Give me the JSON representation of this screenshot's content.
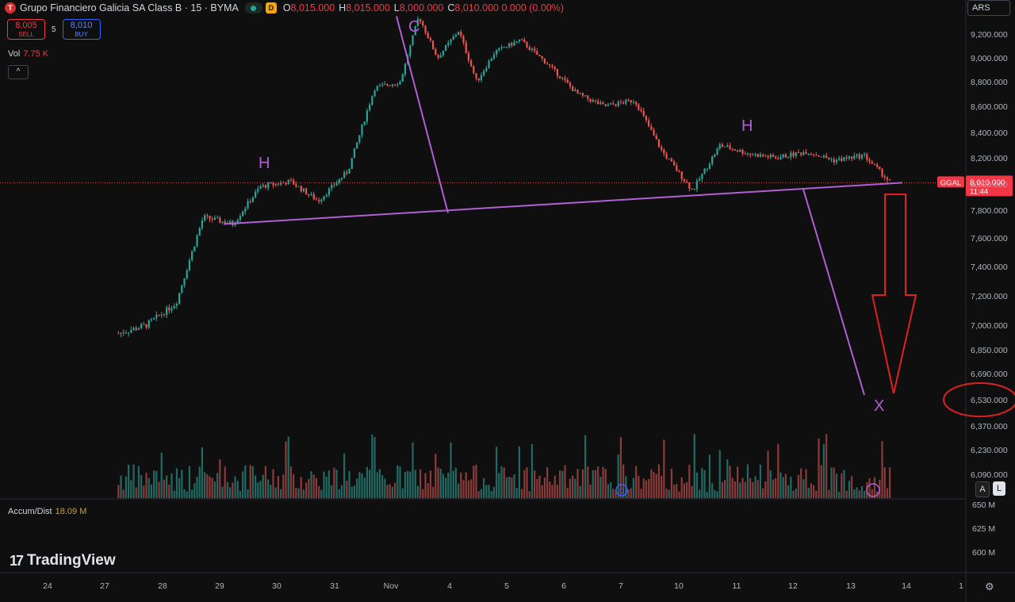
{
  "header": {
    "symbol_icon": "T",
    "title": "Grupo Financiero Galicia SA Class B · 15 · BYMA",
    "d_badge": "D",
    "o_key": "O",
    "o_val": "8,015.000",
    "h_key": "H",
    "h_val": "8,015.000",
    "l_key": "L",
    "l_val": "8,000.000",
    "c_key": "C",
    "c_val": "8,010.000 0.000 (0.00%)"
  },
  "trade": {
    "sell_price": "8,005",
    "sell_label": "SELL",
    "spread": "5",
    "buy_price": "8,010",
    "buy_label": "BUY"
  },
  "volume": {
    "label": "Vol",
    "value": "7.75 K"
  },
  "collapse_icon": "^",
  "currency": "ARS",
  "indicator": {
    "label": "Accum/Dist",
    "value": "18.09 M",
    "axis": [
      "650 M",
      "625 M",
      "600 M"
    ]
  },
  "branding": {
    "logo_mark": "17",
    "name": "TradingView"
  },
  "buttons": {
    "a": "A",
    "l": "L"
  },
  "gear_icon": "⚙",
  "colors": {
    "up": "#26a69a",
    "down": "#ef5350",
    "pattern": "#b05fd4",
    "arrow": "#e02020",
    "price_tag": "#f23645"
  },
  "chart_data": {
    "type": "candlestick",
    "symbol": "GGAL",
    "y_ticks": [
      9200,
      9000,
      8800,
      8600,
      8400,
      8200,
      8000,
      7800,
      7600,
      7400,
      7200,
      7000,
      6850,
      6690,
      6530,
      6370,
      6230,
      6090
    ],
    "y_tick_labels": [
      "9,200.000",
      "9,000.000",
      "8,800.000",
      "8,600.000",
      "8,400.000",
      "8,200.000",
      "8,000.000",
      "7,800.000",
      "7,600.000",
      "7,400.000",
      "7,200.000",
      "7,000.000",
      "6,850.000",
      "6,690.000",
      "6,530.000",
      "6,370.000",
      "6,230.000",
      "6,090.000"
    ],
    "x_labels": [
      "24",
      "27",
      "28",
      "29",
      "30",
      "31",
      "Nov",
      "4",
      "5",
      "6",
      "7",
      "10",
      "11",
      "12",
      "13",
      "14",
      "1"
    ],
    "last_price": "8,010.000",
    "last_price_time": "11:44",
    "pattern_labels": {
      "left_shoulder": "H",
      "head": "C",
      "right_shoulder": "H",
      "target": "X"
    },
    "neckline": [
      [
        7700,
        0
      ],
      [
        8000,
        1
      ]
    ],
    "target_price": "6,530.000",
    "price_path": [
      [
        "27",
        6950
      ],
      [
        "27",
        7000
      ],
      [
        "28",
        7150
      ],
      [
        "28",
        7750
      ],
      [
        "29",
        7700
      ],
      [
        "29",
        7980
      ],
      [
        "30",
        8020
      ],
      [
        "30",
        7870
      ],
      [
        "31",
        8100
      ],
      [
        "31",
        8750
      ],
      [
        "Nov",
        8800
      ],
      [
        "Nov",
        9350
      ],
      [
        "Nov",
        9000
      ],
      [
        "4",
        9230
      ],
      [
        "4",
        8800
      ],
      [
        "4",
        9050
      ],
      [
        "5",
        9150
      ],
      [
        "5",
        8950
      ],
      [
        "6",
        8700
      ],
      [
        "6",
        8600
      ],
      [
        "7",
        8650
      ],
      [
        "7",
        8250
      ],
      [
        "10",
        7950
      ],
      [
        "10",
        8300
      ],
      [
        "11",
        8230
      ],
      [
        "11",
        8200
      ],
      [
        "12",
        8250
      ],
      [
        "12",
        8180
      ],
      [
        "13",
        8220
      ],
      [
        "13",
        8010
      ]
    ]
  }
}
